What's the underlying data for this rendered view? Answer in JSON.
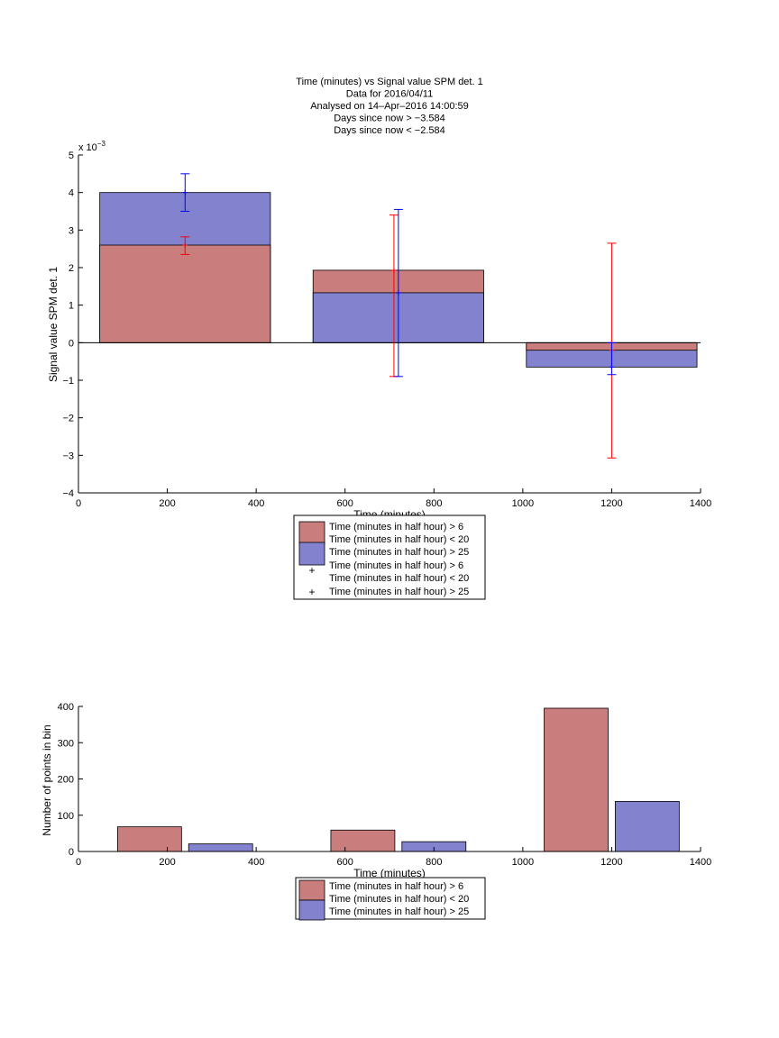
{
  "colors": {
    "series1": "#c97d7d",
    "series2": "#8282cf",
    "err1": "#ff0000",
    "err2": "#0000ff",
    "axis": "#000000"
  },
  "chart_data": [
    {
      "type": "bar",
      "title_lines": [
        "Time (minutes) vs Signal value SPM det. 1",
        "Data for 2016/04/11",
        "Analysed on 14–Apr–2016 14:00:59",
        "Days since now > −3.584",
        "Days since now < −2.584"
      ],
      "xlabel": "Time (minutes)",
      "ylabel": "Signal value SPM det. 1",
      "y_exponent": "x 10",
      "y_exponent_power": "−3",
      "xlim": [
        0,
        1400
      ],
      "ylim": [
        -4,
        5
      ],
      "xticks": [
        "0",
        "200",
        "400",
        "600",
        "800",
        "1000",
        "1200",
        "1400"
      ],
      "yticks": [
        "−4",
        "−3",
        "−2",
        "−1",
        "0",
        "1",
        "2",
        "3",
        "4",
        "5"
      ],
      "bar_x": [
        240,
        720,
        1200
      ],
      "bar_width": 384,
      "series": [
        {
          "name": "Time (minutes in half hour) > 6\nTime (minutes in half hour) < 20",
          "values": [
            2.6,
            1.93,
            -0.2
          ],
          "error_x": [
            240,
            710,
            1200
          ],
          "error_low": [
            2.35,
            -0.9,
            -3.07
          ],
          "error_high": [
            2.82,
            3.4,
            2.65
          ]
        },
        {
          "name": "Time (minutes in half hour) > 25",
          "values": [
            4.0,
            1.33,
            -0.65
          ],
          "error_x": [
            240,
            720,
            1200
          ],
          "error_low": [
            3.5,
            -0.9,
            -0.85
          ],
          "error_high": [
            4.5,
            3.55,
            0.0
          ]
        }
      ],
      "legend": {
        "bar_entries": [
          {
            "line1": "Time (minutes in half hour) > 6",
            "line2": "Time (minutes in half hour) < 20"
          },
          {
            "line1": "Time (minutes in half hour) > 25",
            "line2": ""
          }
        ],
        "marker_entries": [
          {
            "line1": "Time (minutes in half hour) > 6",
            "line2": "Time (minutes in half hour) < 20"
          },
          {
            "line1": "Time (minutes in half hour) > 25",
            "line2": ""
          }
        ]
      }
    },
    {
      "type": "bar",
      "xlabel": "Time (minutes)",
      "ylabel": "Number of points in bin",
      "xlim": [
        0,
        1400
      ],
      "ylim": [
        0,
        400
      ],
      "xticks": [
        "0",
        "200",
        "400",
        "600",
        "800",
        "1000",
        "1200",
        "1400"
      ],
      "yticks": [
        "0",
        "100",
        "200",
        "300",
        "400"
      ],
      "bar_width": 144,
      "series": [
        {
          "name": "Time (minutes in half hour) > 6\nTime (minutes in half hour) < 20",
          "x": [
            160,
            640,
            1120
          ],
          "values": [
            68,
            59,
            395
          ]
        },
        {
          "name": "Time (minutes in half hour) > 25",
          "x": [
            320,
            800,
            1280
          ],
          "values": [
            21,
            27,
            138
          ]
        }
      ],
      "legend": {
        "bar_entries": [
          {
            "line1": "Time (minutes in half hour) > 6",
            "line2": "Time (minutes in half hour) < 20"
          },
          {
            "line1": "Time (minutes in half hour) > 25",
            "line2": ""
          }
        ]
      }
    }
  ]
}
